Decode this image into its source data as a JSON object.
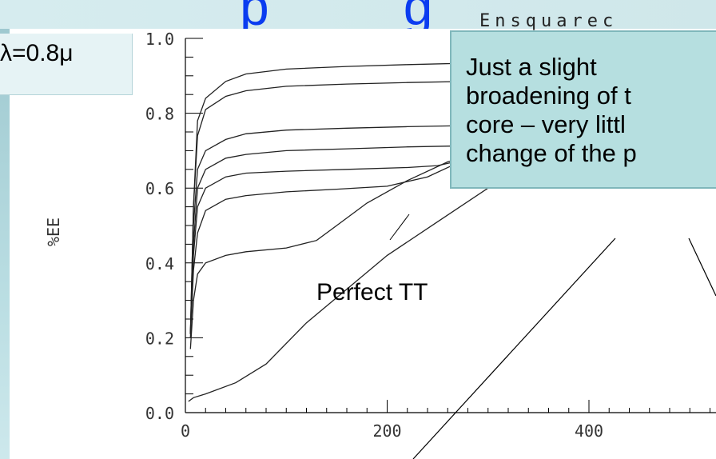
{
  "slide": {
    "title_fragment": "p",
    "title_fragment_right": "g",
    "wavelength_label": "λ=0.8μ",
    "callout_text": "Just a slight\nbroadening of t\ncore – very littl\nchange of the p",
    "annotation": "Perfect TT",
    "colors": {
      "title": "#0a3cf0",
      "callout_bg": "#b6dfe0",
      "band": "#cfe7ea"
    }
  },
  "chart_data": {
    "type": "line",
    "title": "Ensquarec",
    "ylabel": "%EE",
    "xlabel": "",
    "xlim": [
      0,
      510
    ],
    "ylim": [
      0.0,
      1.0
    ],
    "x_ticks": [
      "0",
      "200",
      "400"
    ],
    "y_ticks": [
      "0.0",
      "0.2",
      "0.4",
      "0.6",
      "0.8",
      "1.0"
    ],
    "grid": false,
    "series": [
      {
        "x": [
          5,
          8,
          12,
          20,
          40,
          60,
          100,
          160,
          220,
          300,
          400,
          510
        ],
        "y": [
          0.21,
          0.55,
          0.78,
          0.84,
          0.885,
          0.905,
          0.918,
          0.925,
          0.93,
          0.935,
          0.94,
          0.945
        ]
      },
      {
        "x": [
          5,
          8,
          12,
          20,
          40,
          60,
          100,
          160,
          220,
          300,
          400,
          510
        ],
        "y": [
          0.21,
          0.55,
          0.74,
          0.81,
          0.845,
          0.86,
          0.872,
          0.878,
          0.882,
          0.886,
          0.89,
          0.893
        ]
      },
      {
        "x": [
          5,
          8,
          12,
          20,
          40,
          60,
          100,
          160,
          220,
          300,
          400,
          510
        ],
        "y": [
          0.21,
          0.5,
          0.65,
          0.7,
          0.73,
          0.745,
          0.755,
          0.76,
          0.764,
          0.768,
          0.772,
          0.775
        ]
      },
      {
        "x": [
          5,
          8,
          12,
          20,
          40,
          60,
          100,
          160,
          220,
          300,
          400,
          510
        ],
        "y": [
          0.21,
          0.45,
          0.6,
          0.65,
          0.68,
          0.69,
          0.7,
          0.705,
          0.71,
          0.714,
          0.718,
          0.72
        ]
      },
      {
        "x": [
          5,
          8,
          12,
          20,
          40,
          60,
          100,
          160,
          220,
          250,
          300,
          400,
          510
        ],
        "y": [
          0.21,
          0.42,
          0.55,
          0.6,
          0.63,
          0.64,
          0.645,
          0.65,
          0.655,
          0.66,
          0.69,
          0.72,
          0.73
        ]
      },
      {
        "x": [
          5,
          8,
          12,
          20,
          40,
          60,
          100,
          150,
          200,
          240,
          280,
          320,
          400,
          510
        ],
        "y": [
          0.2,
          0.38,
          0.48,
          0.54,
          0.57,
          0.58,
          0.59,
          0.597,
          0.605,
          0.63,
          0.68,
          0.72,
          0.73,
          0.735
        ]
      },
      {
        "x": [
          5,
          8,
          12,
          20,
          40,
          60,
          100,
          130,
          150,
          180,
          220,
          260,
          300,
          350,
          400,
          510
        ],
        "y": [
          0.17,
          0.3,
          0.37,
          0.4,
          0.42,
          0.43,
          0.44,
          0.46,
          0.5,
          0.56,
          0.62,
          0.67,
          0.7,
          0.72,
          0.73,
          0.74
        ]
      },
      {
        "x": [
          3,
          8,
          20,
          50,
          80,
          120,
          160,
          200,
          250,
          300,
          350,
          400,
          450,
          510
        ],
        "y": [
          0.03,
          0.04,
          0.05,
          0.08,
          0.13,
          0.24,
          0.33,
          0.42,
          0.51,
          0.6,
          0.66,
          0.71,
          0.73,
          0.74
        ]
      }
    ]
  }
}
